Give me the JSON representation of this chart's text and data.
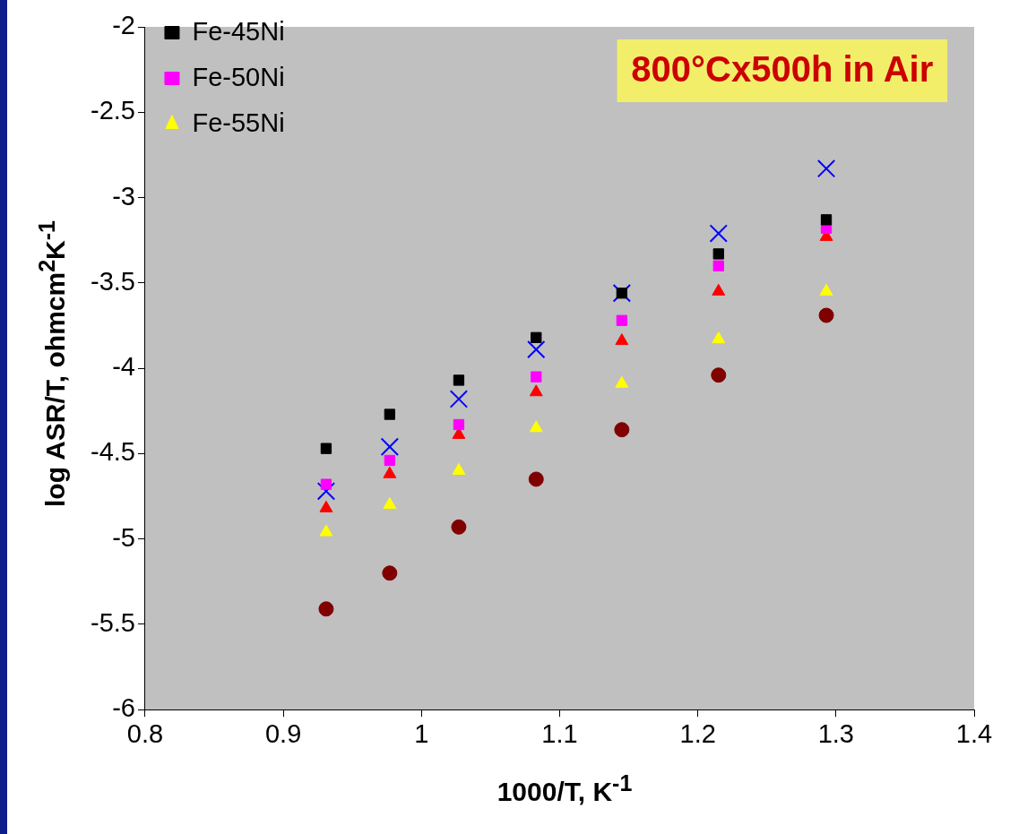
{
  "chart_data": {
    "type": "scatter",
    "xlabel": "1000/T, K$^{-1}$",
    "ylabel": "log ASR/T, ohmcm$^{2}$K$^{-1}$",
    "x": [
      0.931,
      0.977,
      1.027,
      1.083,
      1.145,
      1.215,
      1.293
    ],
    "series": [
      {
        "name": "Fe-45Ni",
        "color": "#000000",
        "marker": "square",
        "values": [
          -4.47,
          -4.27,
          -4.07,
          -3.82,
          -3.56,
          -3.33,
          -3.13
        ]
      },
      {
        "name": "Fe-50Ni",
        "color": "#ff00ff",
        "marker": "square",
        "values": [
          -4.68,
          -4.54,
          -4.33,
          -4.05,
          -3.72,
          -3.4,
          -3.18
        ]
      },
      {
        "name": "Fe-55Ni",
        "color": "#ffff00",
        "marker": "triangle",
        "values": [
          -4.96,
          -4.8,
          -4.6,
          -4.35,
          -4.09,
          -3.83,
          -3.55
        ]
      },
      {
        "color": "#0000ff",
        "marker": "cross",
        "values": [
          -4.72,
          -4.46,
          -4.18,
          -3.89,
          -3.56,
          -3.21,
          -2.83
        ]
      },
      {
        "color": "#ff0000",
        "marker": "triangle",
        "values": [
          -4.82,
          -4.62,
          -4.39,
          -4.14,
          -3.84,
          -3.55,
          -3.23
        ]
      },
      {
        "color": "#800000",
        "marker": "circle",
        "values": [
          -5.41,
          -5.2,
          -4.93,
          -4.65,
          -4.36,
          -4.04,
          -3.69
        ]
      }
    ],
    "xlim": [
      0.8,
      1.4
    ],
    "xticks": [
      0.8,
      0.9,
      1,
      1.1,
      1.2,
      1.3,
      1.4
    ],
    "ylim": [
      -6,
      -2
    ],
    "yticks": [
      -6,
      -5.5,
      -5,
      -4.5,
      -4,
      -3.5,
      -3,
      -2.5,
      -2
    ],
    "grid": false,
    "legend": "top left",
    "annotations": [
      "800°Cx500h in Air"
    ]
  }
}
